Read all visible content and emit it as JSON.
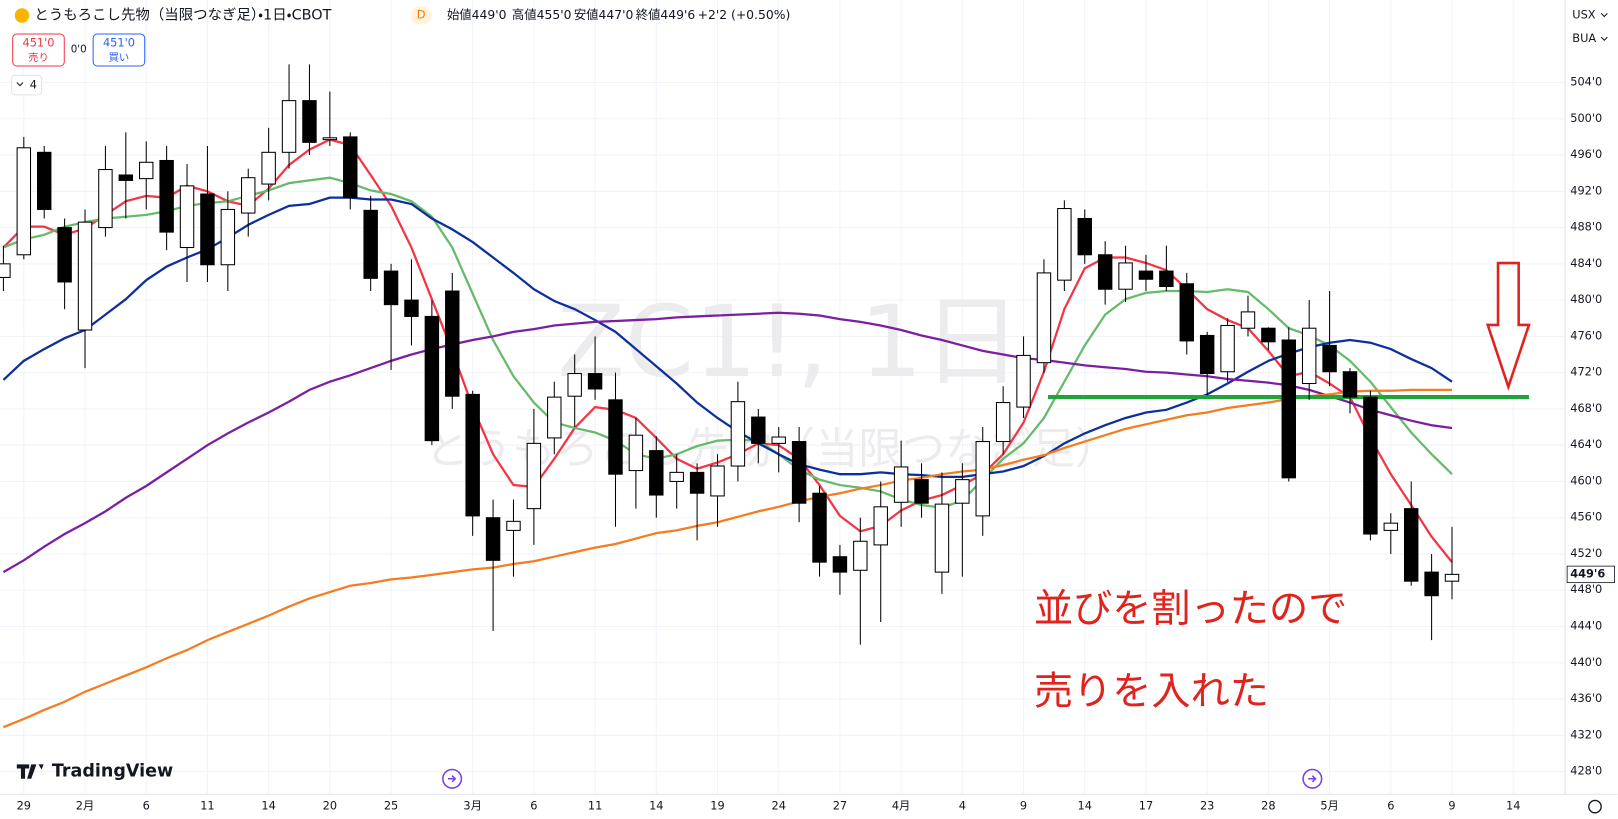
{
  "chart_data": {
    "type": "candlestick",
    "title": "とうもろこし先物（当限つなぎ足）・1日・CBOT",
    "interval_badge": "D",
    "ohlc_labels": [
      "始値449'0",
      "高値455'0",
      "安値447'0",
      "終値449'6",
      "+2'2 (+0.50%)"
    ],
    "watermark": [
      "ZC1!, 1日",
      "とうもろこし先物（当限つなぎ足）"
    ],
    "annotations": [
      "並びを割ったので",
      "売りを入れた"
    ],
    "categories": [
      null,
      "29",
      null,
      null,
      "2月",
      null,
      null,
      "6",
      null,
      null,
      "11",
      null,
      null,
      "14",
      null,
      null,
      "20",
      null,
      null,
      "25",
      null,
      null,
      null,
      "3月",
      null,
      null,
      "6",
      null,
      null,
      "11",
      null,
      null,
      "14",
      null,
      null,
      "19",
      null,
      null,
      "24",
      null,
      null,
      "27",
      null,
      null,
      "4月",
      null,
      null,
      "4",
      null,
      null,
      "9",
      null,
      null,
      "14",
      null,
      null,
      "17",
      null,
      null,
      "23",
      null,
      null,
      "28",
      null,
      null,
      "5月",
      null,
      null,
      "6",
      null,
      null,
      "9",
      null,
      null,
      "14"
    ],
    "open": [
      482.5,
      485,
      496.3,
      488,
      476.7,
      488,
      493.8,
      493.4,
      495.4,
      485.8,
      491.7,
      483.9,
      489.6,
      492.8,
      496.3,
      502,
      497.7,
      498,
      489.9,
      483.2,
      480,
      478.2,
      481,
      469.6,
      456,
      454.6,
      457,
      464.8,
      469.4,
      471.9,
      469,
      461.2,
      463.4,
      460,
      461,
      458.4,
      461.7,
      467.1,
      464.2,
      464.4,
      458.7,
      451.7,
      450.2,
      453,
      457.7,
      460.2,
      450,
      457.6,
      456.2,
      464.4,
      468.2,
      473.1,
      482.2,
      489,
      485,
      481.2,
      483.2,
      483.2,
      481.8,
      476.1,
      472.1,
      476.9,
      476.9,
      475.6,
      470.8,
      475,
      472.1,
      469.3,
      454.6,
      457,
      450,
      449,
      null,
      null,
      null
    ],
    "high": [
      486,
      498,
      497,
      489,
      490,
      497,
      498.5,
      497.5,
      497,
      495,
      497,
      492,
      494.5,
      499,
      506,
      506,
      503,
      498.5,
      491.5,
      484,
      484.5,
      480,
      483,
      470,
      458,
      458,
      468,
      471,
      474,
      476,
      472,
      467,
      465,
      463,
      462,
      463,
      471,
      468,
      466,
      466,
      459.5,
      453,
      456,
      460,
      464.5,
      462,
      461,
      462,
      466,
      470.5,
      476,
      484.5,
      491,
      490,
      486.5,
      486,
      485,
      486,
      483,
      476.5,
      478,
      480.5,
      477,
      477,
      480,
      481,
      472.5,
      470,
      456.5,
      460,
      452,
      455,
      null,
      null,
      null
    ],
    "low": [
      481,
      484.5,
      489,
      479,
      472.5,
      487,
      489,
      490,
      485.5,
      482,
      482,
      481,
      487,
      491,
      494.5,
      496,
      497,
      490,
      481,
      472.3,
      475,
      464,
      468,
      454,
      443.5,
      449.5,
      453,
      463,
      466,
      469,
      455,
      457,
      456,
      457,
      453.5,
      455,
      460,
      462,
      461,
      455.5,
      449.5,
      447.5,
      442,
      444.5,
      455,
      456,
      447.6,
      449.5,
      454,
      463,
      467,
      472,
      481,
      484,
      479.5,
      479.8,
      481,
      481,
      474,
      469.5,
      471,
      476,
      474.5,
      460,
      469,
      470.5,
      467.5,
      453.5,
      452,
      448.5,
      442.5,
      447,
      null,
      null,
      null
    ],
    "close": [
      484,
      496.8,
      490,
      482,
      488.6,
      494.4,
      493.2,
      495.2,
      487.5,
      492.6,
      483.9,
      490,
      493.5,
      496.3,
      502,
      497.4,
      497.9,
      491.3,
      482.4,
      479.5,
      478.2,
      464.5,
      469.4,
      456.2,
      451.3,
      455.6,
      464.2,
      469.3,
      471.9,
      470.2,
      460.8,
      465.1,
      458.5,
      461,
      458.7,
      461.7,
      468.8,
      464.2,
      464.9,
      457.6,
      451.1,
      450,
      453.4,
      457.2,
      461.6,
      457.6,
      457.5,
      460.2,
      464.4,
      468.7,
      473.9,
      483,
      490.1,
      485,
      481.2,
      484.1,
      482.3,
      481.5,
      475.5,
      471.9,
      477.2,
      478.7,
      475.4,
      460.4,
      476.9,
      472.1,
      469.3,
      454.2,
      455.4,
      449,
      447.4,
      449.75,
      null,
      null,
      null
    ],
    "up_color": "#ffffff",
    "down_color": "#000000",
    "overlays": [
      {
        "color": "#f23645",
        "values": [
          485.8,
          488.1,
          488.1,
          487.2,
          487.9,
          489.4,
          490.9,
          491.5,
          491.3,
          492.6,
          492,
          490.9,
          490.4,
          492.3,
          494.9,
          496.6,
          497.7,
          497.1,
          493.8,
          490.4,
          485.8,
          480.1,
          474.4,
          468.2,
          463,
          459.6,
          459.4,
          462.5,
          465.9,
          468.2,
          467.9,
          467,
          464.8,
          462.5,
          461.4,
          462.1,
          463,
          464.2,
          464,
          462.5,
          459.6,
          456.2,
          454.5,
          455.1,
          456.8,
          457.9,
          458.5,
          459.6,
          460.8,
          463,
          466.5,
          472.1,
          479,
          483.5,
          484.7,
          484.7,
          484.1,
          483.3,
          481.2,
          479,
          477.8,
          476.9,
          474.4,
          471.6,
          472.1,
          470.8,
          469.3,
          464.8,
          460.8,
          457.4,
          453.9,
          451.1,
          null,
          null,
          null
        ]
      },
      {
        "color": "#66bb6a",
        "values": [
          485.8,
          486.7,
          487.2,
          488.1,
          488.6,
          489,
          489.2,
          489.4,
          489.8,
          490.4,
          490.7,
          490.9,
          491.5,
          492.1,
          492.9,
          493.2,
          493.5,
          492.9,
          492.1,
          491.7,
          490.9,
          489.2,
          485.8,
          480.7,
          475.6,
          471.6,
          468.7,
          466.5,
          465.9,
          465.4,
          464.5,
          463,
          462.5,
          463,
          463.9,
          464.5,
          464.6,
          464.5,
          463,
          461.3,
          460.2,
          459.6,
          459.3,
          458.9,
          458,
          457.4,
          457.1,
          457.9,
          460.2,
          462.5,
          464.2,
          467,
          471,
          475,
          478.4,
          480.1,
          480.8,
          481,
          481,
          480.9,
          481.2,
          480.9,
          479,
          476.9,
          476.1,
          475,
          473.3,
          471,
          468.2,
          465.4,
          463,
          460.8,
          null,
          null,
          null
        ]
      },
      {
        "color": "#0d2f9e",
        "values": [
          471.2,
          473.3,
          474.6,
          475.8,
          476.7,
          478.4,
          480.1,
          482.2,
          483.7,
          484.7,
          485.6,
          486.9,
          488.3,
          489.4,
          490.4,
          490.6,
          491.3,
          491.3,
          491.1,
          491.1,
          490.6,
          489,
          487.8,
          486.4,
          484.7,
          483,
          481.2,
          479.9,
          479,
          477.8,
          476.5,
          474.6,
          472.7,
          470.8,
          468.7,
          467,
          465.5,
          464.2,
          463,
          461.9,
          461.3,
          460.8,
          460.8,
          461,
          460.8,
          460.7,
          460.5,
          460.5,
          460.8,
          461.1,
          461.7,
          462.8,
          464.2,
          465.3,
          466.2,
          467,
          467.6,
          467.9,
          468.7,
          469.6,
          470.8,
          472.1,
          473.3,
          474.1,
          474.8,
          475.3,
          475.6,
          475.3,
          474.6,
          473.5,
          472.5,
          471,
          null,
          null,
          null
        ]
      },
      {
        "color": "#7b1fa2",
        "values": [
          450,
          451.3,
          452.8,
          454.2,
          455.4,
          456.7,
          458.2,
          459.5,
          461,
          462.5,
          464,
          465.3,
          466.5,
          467.6,
          468.8,
          470.1,
          471,
          471.7,
          472.5,
          473.3,
          474,
          474.6,
          475.1,
          475.6,
          476,
          476.5,
          476.8,
          477.2,
          477.4,
          477.6,
          477.7,
          477.8,
          477.9,
          478.1,
          478.2,
          478.3,
          478.4,
          478.5,
          478.6,
          478.5,
          478.3,
          477.9,
          477.6,
          477.2,
          476.7,
          476.1,
          475.6,
          475,
          474.4,
          474,
          473.6,
          473.4,
          473.1,
          472.8,
          472.6,
          472.4,
          472.1,
          472,
          471.8,
          471.6,
          471.3,
          471.1,
          470.9,
          470.6,
          470.1,
          469.4,
          468.7,
          467.9,
          467.3,
          466.7,
          466.2,
          465.9,
          null,
          null,
          null
        ]
      },
      {
        "color": "#f57c1f",
        "values": [
          432.9,
          433.8,
          434.8,
          435.7,
          436.8,
          437.7,
          438.6,
          439.5,
          440.5,
          441.4,
          442.5,
          443.4,
          444.3,
          445.2,
          446.2,
          447.1,
          447.8,
          448.5,
          448.8,
          449.2,
          449.4,
          449.7,
          450,
          450.3,
          450.5,
          450.9,
          451.2,
          451.7,
          452.2,
          452.7,
          453.1,
          453.7,
          454.3,
          454.6,
          455.1,
          455.5,
          456.1,
          456.7,
          457.2,
          457.8,
          458.3,
          458.7,
          459.2,
          459.6,
          460.1,
          460.4,
          460.8,
          461.1,
          461.3,
          461.8,
          462.4,
          462.9,
          463.7,
          464.4,
          465.1,
          465.8,
          466.3,
          466.8,
          467.3,
          467.6,
          468.1,
          468.4,
          468.7,
          469.1,
          469.4,
          469.6,
          469.9,
          470,
          470,
          470.1,
          470.1,
          470.1,
          null,
          null,
          null
        ]
      }
    ],
    "hline": {
      "value": 469.3,
      "color": "#22a33a"
    },
    "last_price": {
      "value": 449.75,
      "label": "449'6"
    },
    "ylim": [
      425.5,
      513.1
    ],
    "yticks": [
      {
        "value": 428,
        "label": "428'0"
      },
      {
        "value": 432,
        "label": "432'0"
      },
      {
        "value": 436,
        "label": "436'0"
      },
      {
        "value": 440,
        "label": "440'0"
      },
      {
        "value": 444,
        "label": "444'0"
      },
      {
        "value": 448,
        "label": "448'0"
      },
      {
        "value": 452,
        "label": "452'0"
      },
      {
        "value": 456,
        "label": "456'0"
      },
      {
        "value": 460,
        "label": "460'0"
      },
      {
        "value": 464,
        "label": "464'0"
      },
      {
        "value": 468,
        "label": "468'0"
      },
      {
        "value": 472,
        "label": "472'0"
      },
      {
        "value": 476,
        "label": "476'0"
      },
      {
        "value": 480,
        "label": "480'0"
      },
      {
        "value": 484,
        "label": "484'0"
      },
      {
        "value": 488,
        "label": "488'0"
      },
      {
        "value": 492,
        "label": "492'0"
      },
      {
        "value": 496,
        "label": "496'0"
      },
      {
        "value": 500,
        "label": "500'0"
      },
      {
        "value": 504,
        "label": "504'0"
      }
    ],
    "grid": true
  },
  "toolbar": {
    "sell_price": "451'0",
    "sell": "売り",
    "spread": "0'0",
    "buy_price": "451'0",
    "buy": "買い",
    "indicators": "4",
    "currency": "USX",
    "unit": "BUA",
    "brand": "TradingView"
  }
}
